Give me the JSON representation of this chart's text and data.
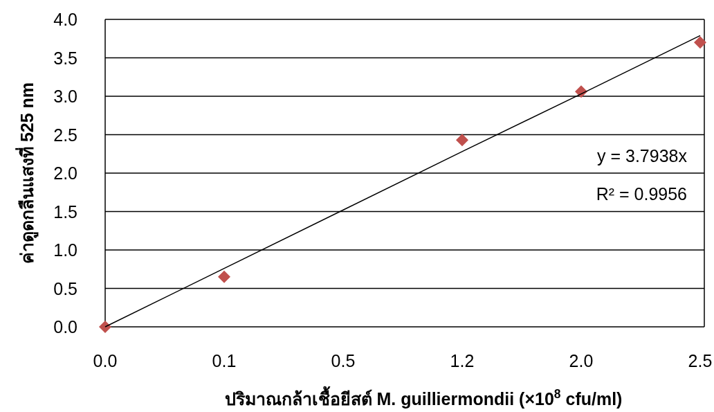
{
  "chart_data": {
    "type": "scatter",
    "xlabel": "ปริมาณกล้าเชื้อยีสต์ M. guilliermondii (×10$^{8}$ cfu/ml)",
    "ylabel": "ค่าดูดกลืนแสงที่ 525 nm",
    "categories": [
      "0.0",
      "0.1",
      "0.5",
      "1.2",
      "2.0",
      "2.5"
    ],
    "ylim": [
      0,
      4
    ],
    "yticks": [
      {
        "value": 0,
        "label": "0.0"
      },
      {
        "value": 0.5,
        "label": "0.5"
      },
      {
        "value": 1,
        "label": "1.0"
      },
      {
        "value": 1.5,
        "label": "1.5"
      },
      {
        "value": 2,
        "label": "2.0"
      },
      {
        "value": 2.5,
        "label": "2.5"
      },
      {
        "value": 3,
        "label": "3.0"
      },
      {
        "value": 3.5,
        "label": "3.5"
      },
      {
        "value": 4,
        "label": "4.0"
      }
    ],
    "grid": "y",
    "series": [
      {
        "color": "#c0504d",
        "marker": "diamond",
        "values": [
          0,
          0.65,
          null,
          2.43,
          3.06,
          3.7
        ]
      },
      {
        "type": "line",
        "color": "#000000",
        "values": [
          0,
          0.76,
          1.52,
          2.28,
          3.03,
          3.79
        ]
      }
    ],
    "annotations": [
      "y = 3.7938x",
      "R² = 0.9956"
    ]
  }
}
